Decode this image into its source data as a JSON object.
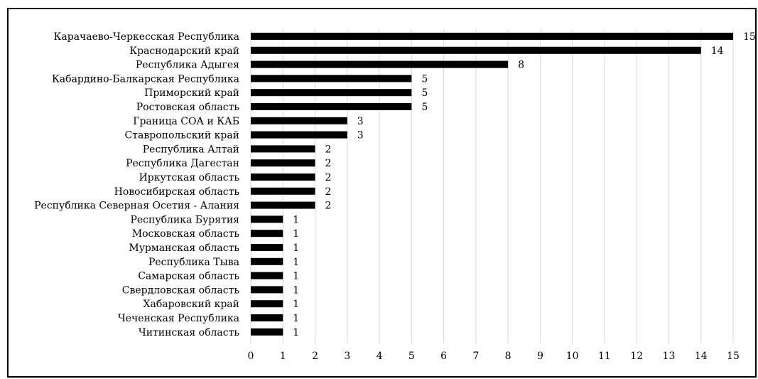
{
  "chart_data": {
    "type": "bar",
    "orientation": "horizontal",
    "title": "",
    "xlabel": "",
    "ylabel": "",
    "xlim": [
      0,
      15
    ],
    "xticks": [
      "0",
      "1",
      "2",
      "3",
      "4",
      "5",
      "6",
      "7",
      "8",
      "9",
      "10",
      "11",
      "12",
      "13",
      "14",
      "15"
    ],
    "grid": "vertical",
    "legend": "none",
    "bar_color": "#000000",
    "categories": [
      "Карачаево-Черкесская Республика",
      "Краснодарский край",
      "Республика Адыгея",
      "Кабардино-Балкарская Республика",
      "Приморский край",
      "Ростовская область",
      "Граница СОА и КАБ",
      "Ставропольский край",
      "Республика Алтай",
      "Республика Дагестан",
      "Иркутская область",
      "Новосибирская область",
      "Республика Северная Осетия - Алания",
      "Республика Бурятия",
      "Московская область",
      "Мурманская область",
      "Республика Тыва",
      "Самарская область",
      "Свердловская область",
      "Хабаровский край",
      "Чеченская Республика",
      "Читинская область"
    ],
    "values": [
      15,
      14,
      8,
      5,
      5,
      5,
      3,
      3,
      2,
      2,
      2,
      2,
      2,
      1,
      1,
      1,
      1,
      1,
      1,
      1,
      1,
      1
    ],
    "data_labels": [
      "15",
      "14",
      "8",
      "5",
      "5",
      "5",
      "3",
      "3",
      "2",
      "2",
      "2",
      "2",
      "2",
      "1",
      "1",
      "1",
      "1",
      "1",
      "1",
      "1",
      "1",
      "1"
    ]
  }
}
